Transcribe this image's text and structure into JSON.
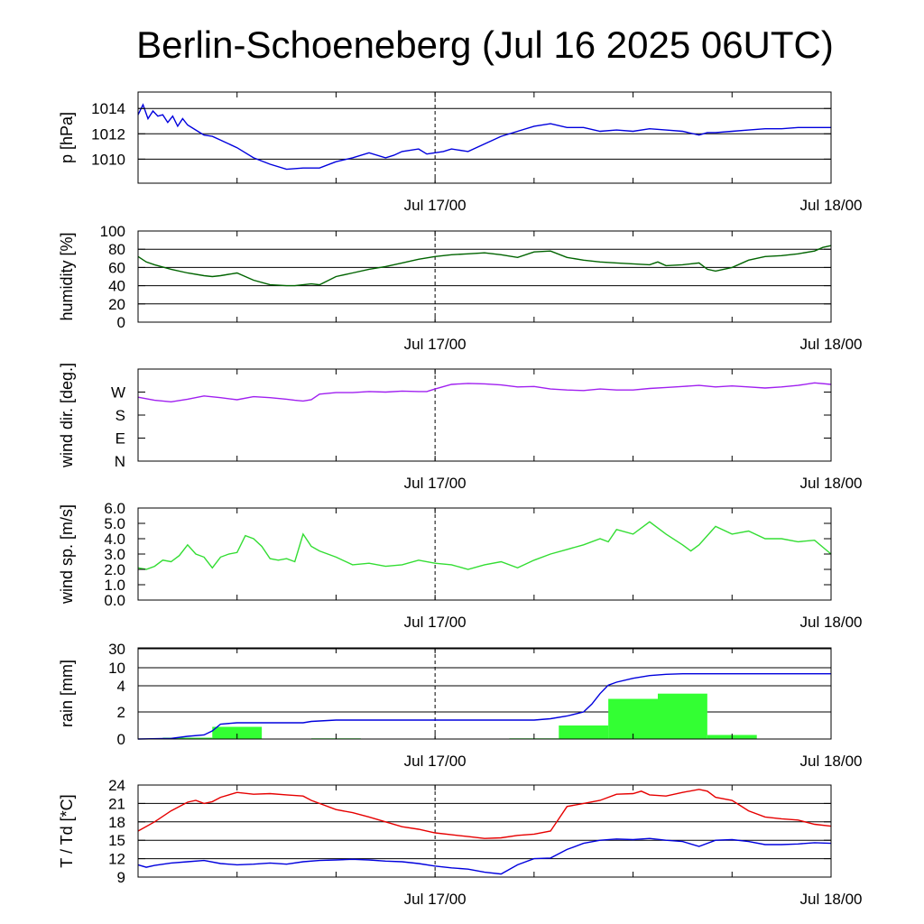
{
  "title": "Berlin-Schoeneberg (Jul 16 2025 06UTC)",
  "colors": {
    "pressure": "#0000dd",
    "humidity": "#006400",
    "wind_dir": "#a020f0",
    "wind_speed": "#33dd33",
    "rain_bar": "#33ff33",
    "rain_cumulative": "#0000dd",
    "temperature": "#e60000",
    "dewpoint": "#0000dd"
  },
  "chart_data": [
    {
      "id": "pressure",
      "type": "line",
      "ylabel": "p [hPa]",
      "xlim": [
        0,
        42
      ],
      "ylim": [
        1008.1,
        1015.3
      ],
      "yticks": [
        1010,
        1012,
        1014
      ],
      "ytick_labels": [
        "1010",
        "1012",
        "1014"
      ],
      "grid_y": [
        1010,
        1012,
        1014
      ],
      "xtick_labels": [
        {
          "x": 18,
          "label": "Jul 17/00"
        },
        {
          "x": 42,
          "label": "Jul 18/00"
        }
      ],
      "vline": 18,
      "series": [
        {
          "color_key": "pressure",
          "x": [
            0,
            0.3,
            0.6,
            0.9,
            1.2,
            1.5,
            1.8,
            2.1,
            2.4,
            2.7,
            3.0,
            3.5,
            4.0,
            4.5,
            5,
            6,
            7,
            8,
            9,
            10,
            10.5,
            11,
            12,
            13,
            14,
            15,
            15.5,
            16,
            17,
            17.5,
            18,
            18.5,
            19,
            20,
            21,
            22,
            23,
            24,
            25,
            26,
            27,
            28,
            29,
            30,
            31,
            32,
            33,
            34,
            34.5,
            35,
            36,
            37,
            38,
            39,
            40,
            41,
            42
          ],
          "y": [
            1013.5,
            1014.3,
            1013.2,
            1013.8,
            1013.4,
            1013.5,
            1012.9,
            1013.4,
            1012.6,
            1013.2,
            1012.7,
            1012.3,
            1011.9,
            1011.8,
            1011.5,
            1010.9,
            1010.1,
            1009.6,
            1009.2,
            1009.3,
            1009.3,
            1009.3,
            1009.8,
            1010.1,
            1010.5,
            1010.1,
            1010.3,
            1010.6,
            1010.8,
            1010.4,
            1010.5,
            1010.6,
            1010.8,
            1010.6,
            1011.2,
            1011.8,
            1012.2,
            1012.6,
            1012.8,
            1012.5,
            1012.5,
            1012.2,
            1012.3,
            1012.2,
            1012.4,
            1012.3,
            1012.2,
            1011.9,
            1012.1,
            1012.1,
            1012.2,
            1012.3,
            1012.4,
            1012.4,
            1012.5,
            1012.5,
            1012.5
          ]
        }
      ]
    },
    {
      "id": "humidity",
      "type": "line",
      "ylabel": "humidity [%]",
      "xlim": [
        0,
        42
      ],
      "ylim": [
        0,
        100
      ],
      "yticks": [
        0,
        20,
        40,
        60,
        80,
        100
      ],
      "ytick_labels": [
        "0",
        "20",
        "40",
        "60",
        "80",
        "100"
      ],
      "grid_y": [
        20,
        40,
        60,
        80
      ],
      "xtick_labels": [
        {
          "x": 18,
          "label": "Jul 17/00"
        },
        {
          "x": 42,
          "label": "Jul 18/00"
        }
      ],
      "vline": 18,
      "series": [
        {
          "color_key": "humidity",
          "x": [
            0,
            0.5,
            1,
            2,
            3,
            4,
            4.5,
            5,
            6,
            7,
            8,
            9,
            9.5,
            10,
            10.5,
            11,
            12,
            13,
            14,
            15,
            16,
            17,
            18,
            19,
            20,
            21,
            22,
            23,
            24,
            25,
            26,
            27,
            28,
            29,
            30,
            31,
            31.5,
            32,
            33,
            34,
            34.5,
            35,
            36,
            37,
            38,
            39,
            40,
            41,
            41.5,
            42
          ],
          "y": [
            72,
            66,
            63,
            58,
            54,
            51,
            50,
            51,
            54,
            46,
            41,
            40,
            40,
            41,
            42,
            41,
            50,
            54,
            58,
            61,
            65,
            69,
            72,
            74,
            75,
            76,
            74,
            71,
            77,
            78,
            71,
            68,
            66,
            65,
            64,
            63,
            66,
            62,
            63,
            65,
            58,
            56,
            60,
            68,
            72,
            73,
            75,
            78,
            82,
            84
          ]
        }
      ]
    },
    {
      "id": "wind_dir",
      "type": "line",
      "ylabel": "wind dir. [deg.]",
      "xlim": [
        0,
        42
      ],
      "ylim": [
        0,
        360
      ],
      "yticks": [
        0,
        90,
        180,
        270
      ],
      "ytick_labels": [
        "N",
        "E",
        "S",
        "W"
      ],
      "grid_y": [],
      "xtick_labels": [
        {
          "x": 18,
          "label": "Jul 17/00"
        },
        {
          "x": 42,
          "label": "Jul 18/00"
        }
      ],
      "vline": 18,
      "series": [
        {
          "color_key": "wind_dir",
          "x": [
            0,
            1,
            2,
            3,
            4,
            5,
            6,
            7,
            8,
            9,
            9.5,
            10,
            10.5,
            11,
            12,
            13,
            14,
            15,
            16,
            17,
            17.5,
            18,
            19,
            20,
            21,
            22,
            23,
            24,
            25,
            26,
            27,
            28,
            29,
            30,
            31,
            32,
            33,
            34,
            35,
            36,
            37,
            38,
            39,
            40,
            41,
            42
          ],
          "y": [
            250,
            238,
            232,
            242,
            255,
            248,
            240,
            252,
            248,
            242,
            238,
            235,
            240,
            262,
            268,
            268,
            272,
            270,
            274,
            272,
            272,
            282,
            300,
            304,
            302,
            298,
            290,
            292,
            282,
            278,
            276,
            282,
            278,
            278,
            284,
            288,
            292,
            296,
            290,
            294,
            290,
            286,
            290,
            296,
            306,
            300
          ]
        }
      ]
    },
    {
      "id": "wind_speed",
      "type": "line",
      "ylabel": "wind sp. [m/s]",
      "xlim": [
        0,
        42
      ],
      "ylim": [
        0,
        6
      ],
      "yticks": [
        0,
        1,
        2,
        3,
        4,
        5,
        6
      ],
      "ytick_labels": [
        "0.0",
        "1.0",
        "2.0",
        "3.0",
        "4.0",
        "5.0",
        "6.0"
      ],
      "grid_y": [],
      "xtick_labels": [
        {
          "x": 18,
          "label": "Jul 17/00"
        },
        {
          "x": 42,
          "label": "Jul 18/00"
        }
      ],
      "vline": 18,
      "series": [
        {
          "color_key": "wind_speed",
          "x": [
            0,
            0.5,
            1,
            1.5,
            2,
            2.5,
            3,
            3.5,
            4,
            4.5,
            5,
            5.5,
            6,
            6.5,
            7,
            7.5,
            8,
            8.5,
            9,
            9.5,
            10,
            10.5,
            11,
            12,
            13,
            14,
            15,
            16,
            17,
            18,
            19,
            20,
            21,
            22,
            23,
            24,
            25,
            26,
            27,
            28,
            28.5,
            29,
            30,
            31,
            32,
            33,
            33.5,
            34,
            35,
            36,
            37,
            38,
            39,
            40,
            41,
            42
          ],
          "y": [
            2.1,
            2.0,
            2.2,
            2.6,
            2.5,
            2.9,
            3.6,
            3.0,
            2.8,
            2.1,
            2.8,
            3.0,
            3.1,
            4.2,
            4.0,
            3.5,
            2.7,
            2.6,
            2.7,
            2.5,
            4.3,
            3.5,
            3.2,
            2.8,
            2.3,
            2.4,
            2.2,
            2.3,
            2.6,
            2.4,
            2.3,
            2.0,
            2.3,
            2.5,
            2.1,
            2.6,
            3.0,
            3.3,
            3.6,
            4.0,
            3.8,
            4.6,
            4.3,
            5.1,
            4.3,
            3.6,
            3.2,
            3.6,
            4.8,
            4.3,
            4.5,
            4.0,
            4.0,
            3.8,
            3.9,
            3.0
          ]
        }
      ]
    },
    {
      "id": "rain",
      "type": "bar",
      "ylabel": "rain [mm]",
      "xlim": [
        0,
        42
      ],
      "ytick_labels": [
        "0",
        "2",
        "4",
        "10",
        "20",
        "30"
      ],
      "yticks": [
        0,
        2,
        4,
        10,
        20,
        30
      ],
      "grid_y": [
        2,
        4,
        10,
        20
      ],
      "scale_note": "non-linear",
      "xtick_labels": [
        {
          "x": 18,
          "label": "Jul 17/00"
        },
        {
          "x": 42,
          "label": "Jul 18/00"
        }
      ],
      "vline": 18,
      "bars": [
        {
          "x0": 1.5,
          "x1": 4.5,
          "value": 0.1
        },
        {
          "x0": 4.5,
          "x1": 7.5,
          "value": 0.9
        },
        {
          "x0": 10.5,
          "x1": 13.5,
          "value": 0.05
        },
        {
          "x0": 22.5,
          "x1": 25.5,
          "value": 0.05
        },
        {
          "x0": 25.5,
          "x1": 28.5,
          "value": 1.0
        },
        {
          "x0": 28.5,
          "x1": 31.5,
          "value": 3.0
        },
        {
          "x0": 31.5,
          "x1": 34.5,
          "value": 3.4
        },
        {
          "x0": 34.5,
          "x1": 37.5,
          "value": 0.3
        }
      ],
      "series": [
        {
          "name": "",
          "color_key": "rain_cumulative",
          "x": [
            0,
            2,
            3,
            4,
            4.5,
            5,
            6,
            10,
            10.5,
            12,
            18,
            20,
            24,
            25,
            26,
            27,
            27.5,
            28,
            28.5,
            29,
            30,
            31,
            32,
            33,
            34,
            42
          ],
          "y": [
            0,
            0.05,
            0.2,
            0.3,
            0.6,
            1.1,
            1.2,
            1.2,
            1.3,
            1.4,
            1.4,
            1.4,
            1.4,
            1.5,
            1.7,
            2.0,
            2.6,
            3.4,
            4.2,
            5.2,
            6.5,
            7.4,
            7.8,
            8.0,
            8.0,
            8.0
          ]
        }
      ]
    },
    {
      "id": "temperature",
      "type": "line",
      "ylabel": "T / Td [*C]",
      "xlim": [
        0,
        42
      ],
      "ylim": [
        9,
        24
      ],
      "yticks": [
        9,
        12,
        15,
        18,
        21,
        24
      ],
      "ytick_labels": [
        "9",
        "12",
        "15",
        "18",
        "21",
        "24"
      ],
      "grid_y": [
        12,
        15,
        18,
        21
      ],
      "xtick_labels": [
        {
          "x": 18,
          "label": "Jul 17/00"
        },
        {
          "x": 42,
          "label": "Jul 18/00"
        }
      ],
      "vline": 18,
      "series": [
        {
          "name": "",
          "color_key": "temperature",
          "x": [
            0,
            1,
            2,
            3,
            3.5,
            4,
            4.5,
            5,
            6,
            7,
            8,
            9,
            10,
            10.5,
            11,
            12,
            13,
            14,
            15,
            16,
            17,
            18,
            19,
            20,
            21,
            22,
            23,
            24,
            25,
            25.5,
            26,
            27,
            28,
            29,
            30,
            30.5,
            31,
            32,
            33,
            34,
            34.5,
            35,
            36,
            37,
            38,
            39,
            40,
            41,
            42
          ],
          "y": [
            16.5,
            18.0,
            19.8,
            21.2,
            21.5,
            21.0,
            21.3,
            22.0,
            22.8,
            22.5,
            22.6,
            22.4,
            22.2,
            21.5,
            21.0,
            20.0,
            19.5,
            18.8,
            18.0,
            17.2,
            16.8,
            16.2,
            15.9,
            15.6,
            15.3,
            15.4,
            15.8,
            16.0,
            16.5,
            18.5,
            20.5,
            21.0,
            21.5,
            22.5,
            22.6,
            23.0,
            22.4,
            22.2,
            22.8,
            23.3,
            23.0,
            22.0,
            21.5,
            19.8,
            18.8,
            18.5,
            18.3,
            17.6,
            17.3
          ]
        },
        {
          "name": "",
          "color_key": "dewpoint",
          "x": [
            0,
            0.5,
            1,
            2,
            3,
            4,
            5,
            6,
            7,
            8,
            9,
            10,
            11,
            12,
            13,
            14,
            15,
            16,
            17,
            18,
            19,
            20,
            21,
            22,
            23,
            24,
            25,
            26,
            27,
            28,
            29,
            30,
            31,
            32,
            33,
            34,
            35,
            36,
            37,
            38,
            39,
            40,
            41,
            42
          ],
          "y": [
            11.0,
            10.6,
            10.9,
            11.3,
            11.5,
            11.7,
            11.2,
            11.0,
            11.1,
            11.3,
            11.1,
            11.5,
            11.7,
            11.8,
            11.9,
            11.8,
            11.6,
            11.5,
            11.2,
            10.8,
            10.5,
            10.3,
            9.8,
            9.5,
            11.0,
            12.0,
            12.1,
            13.5,
            14.5,
            15.0,
            15.2,
            15.1,
            15.3,
            15.0,
            14.8,
            14.0,
            15.0,
            15.1,
            14.8,
            14.3,
            14.3,
            14.4,
            14.6,
            14.5
          ]
        }
      ]
    }
  ]
}
